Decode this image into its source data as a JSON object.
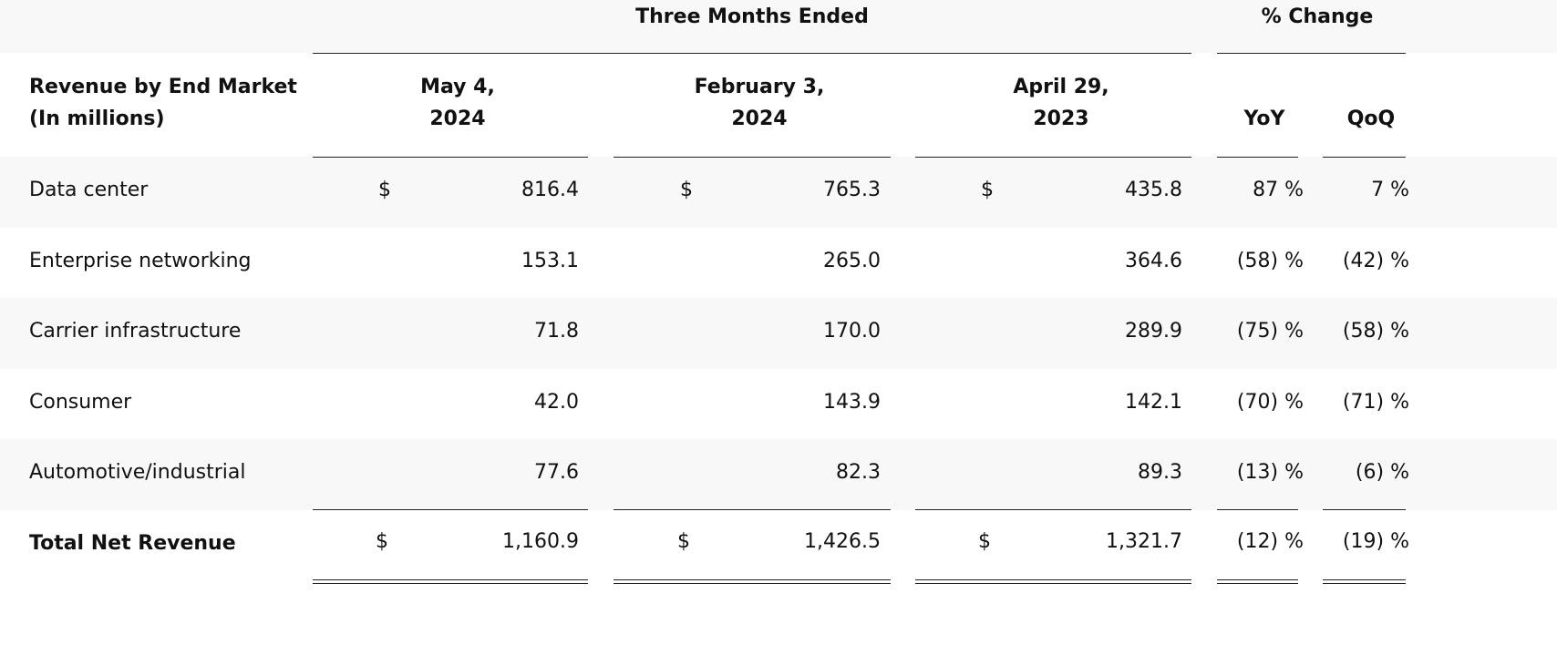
{
  "header": {
    "group_three_months": "Three Months Ended",
    "group_pct_change": "% Change",
    "label_line1": "Revenue by End Market",
    "label_line2": "(In millions)",
    "col1_line1": "May 4,",
    "col1_line2": "2024",
    "col2_line1": "February 3,",
    "col2_line2": "2024",
    "col3_line1": "April 29,",
    "col3_line2": "2023",
    "yoy": "YoY",
    "qoq": "QoQ"
  },
  "currency_symbol": "$",
  "rows": [
    {
      "label": "Data center",
      "v1": "816.4",
      "v2": "765.3",
      "v3": "435.8",
      "yoy": "87",
      "qoq": "7",
      "show_dollar": true
    },
    {
      "label": "Enterprise networking",
      "v1": "153.1",
      "v2": "265.0",
      "v3": "364.6",
      "yoy": "(58)",
      "qoq": "(42)",
      "show_dollar": false
    },
    {
      "label": "Carrier infrastructure",
      "v1": "71.8",
      "v2": "170.0",
      "v3": "289.9",
      "yoy": "(75)",
      "qoq": "(58)",
      "show_dollar": false
    },
    {
      "label": "Consumer",
      "v1": "42.0",
      "v2": "143.9",
      "v3": "142.1",
      "yoy": "(70)",
      "qoq": "(71)",
      "show_dollar": false
    },
    {
      "label": "Automotive/industrial",
      "v1": "77.6",
      "v2": "82.3",
      "v3": "89.3",
      "yoy": "(13)",
      "qoq": "(6)",
      "show_dollar": false
    }
  ],
  "total": {
    "label": "Total Net Revenue",
    "v1": "1,160.9",
    "v2": "1,426.5",
    "v3": "1,321.7",
    "yoy": "(12)",
    "qoq": "(19)"
  },
  "percent_symbol": "%"
}
